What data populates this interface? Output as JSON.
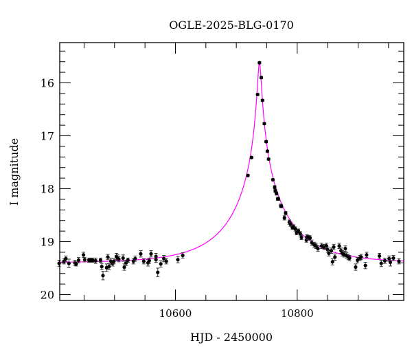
{
  "chart_data": {
    "type": "scatter",
    "title": "OGLE-2025-BLG-0170",
    "xlabel": "HJD - 2450000",
    "ylabel": "I magnitude",
    "xlim": [
      10410,
      10975
    ],
    "ylim": [
      20.11,
      15.24
    ],
    "y_inverted": true,
    "x_ticks": [
      10600,
      10800
    ],
    "y_ticks": [
      16,
      17,
      18,
      19,
      20
    ],
    "grid": false,
    "colors": {
      "points": "#000000",
      "model": "#ff00ff",
      "frame": "#000000"
    },
    "model": {
      "type": "point-lens fit",
      "t0": 10738,
      "tE": 97,
      "u0": 0.031,
      "baseline_mag": 19.4
    },
    "points": [
      [
        10409,
        19.41,
        0.06
      ],
      [
        10417,
        19.37,
        0.05
      ],
      [
        10420,
        19.32,
        0.05
      ],
      [
        10425,
        19.41,
        0.08
      ],
      [
        10435,
        19.4,
        0.05
      ],
      [
        10437,
        19.42,
        0.04
      ],
      [
        10441,
        19.35,
        0.05
      ],
      [
        10449,
        19.25,
        0.05
      ],
      [
        10451,
        19.34,
        0.04
      ],
      [
        10458,
        19.35,
        0.04
      ],
      [
        10461,
        19.35,
        0.04
      ],
      [
        10464,
        19.35,
        0.04
      ],
      [
        10469,
        19.36,
        0.05
      ],
      [
        10477,
        19.35,
        0.04
      ],
      [
        10479,
        19.47,
        0.06
      ],
      [
        10481,
        19.64,
        0.08
      ],
      [
        10487,
        19.49,
        0.07
      ],
      [
        10489,
        19.29,
        0.05
      ],
      [
        10491,
        19.47,
        0.06
      ],
      [
        10494,
        19.37,
        0.06
      ],
      [
        10497,
        19.41,
        0.05
      ],
      [
        10499,
        19.37,
        0.05
      ],
      [
        10503,
        19.28,
        0.06
      ],
      [
        10505,
        19.3,
        0.05
      ],
      [
        10507,
        19.33,
        0.05
      ],
      [
        10514,
        19.31,
        0.06
      ],
      [
        10516,
        19.48,
        0.06
      ],
      [
        10519,
        19.4,
        0.05
      ],
      [
        10522,
        19.35,
        0.04
      ],
      [
        10531,
        19.37,
        0.05
      ],
      [
        10534,
        19.32,
        0.05
      ],
      [
        10543,
        19.23,
        0.06
      ],
      [
        10548,
        19.37,
        0.05
      ],
      [
        10555,
        19.4,
        0.06
      ],
      [
        10557,
        19.36,
        0.05
      ],
      [
        10560,
        19.23,
        0.06
      ],
      [
        10568,
        19.28,
        0.06
      ],
      [
        10568,
        19.34,
        0.05
      ],
      [
        10571,
        19.58,
        0.08
      ],
      [
        10576,
        19.42,
        0.06
      ],
      [
        10581,
        19.32,
        0.06
      ],
      [
        10585,
        19.37,
        0.05
      ],
      [
        10604,
        19.34,
        0.06
      ],
      [
        10612,
        19.26,
        0.05
      ],
      [
        10719,
        17.75,
        0.02
      ],
      [
        10725,
        17.41,
        0.02
      ],
      [
        10735,
        16.22,
        0.02
      ],
      [
        10738,
        15.62,
        0.02
      ],
      [
        10741,
        15.9,
        0.02
      ],
      [
        10743,
        16.33,
        0.02
      ],
      [
        10746,
        16.77,
        0.02
      ],
      [
        10749,
        17.11,
        0.02
      ],
      [
        10751,
        17.29,
        0.02
      ],
      [
        10753,
        17.44,
        0.02
      ],
      [
        10760,
        17.83,
        0.02
      ],
      [
        10763,
        17.97,
        0.03
      ],
      [
        10764,
        18.04,
        0.03
      ],
      [
        10766,
        18.09,
        0.03
      ],
      [
        10768,
        18.19,
        0.03
      ],
      [
        10769,
        18.19,
        0.03
      ],
      [
        10773,
        18.32,
        0.03
      ],
      [
        10774,
        18.33,
        0.03
      ],
      [
        10779,
        18.55,
        0.04
      ],
      [
        10781,
        18.46,
        0.03
      ],
      [
        10787,
        18.63,
        0.04
      ],
      [
        10789,
        18.67,
        0.04
      ],
      [
        10792,
        18.73,
        0.04
      ],
      [
        10794,
        18.72,
        0.04
      ],
      [
        10797,
        18.76,
        0.04
      ],
      [
        10799,
        18.83,
        0.04
      ],
      [
        10802,
        18.8,
        0.04
      ],
      [
        10805,
        18.85,
        0.04
      ],
      [
        10807,
        18.92,
        0.04
      ],
      [
        10815,
        18.97,
        0.04
      ],
      [
        10816,
        18.91,
        0.04
      ],
      [
        10819,
        18.92,
        0.04
      ],
      [
        10821,
        18.93,
        0.04
      ],
      [
        10824,
        19.02,
        0.05
      ],
      [
        10828,
        19.06,
        0.05
      ],
      [
        10831,
        19.08,
        0.05
      ],
      [
        10834,
        19.13,
        0.05
      ],
      [
        10840,
        19.08,
        0.05
      ],
      [
        10844,
        19.1,
        0.05
      ],
      [
        10848,
        19.08,
        0.05
      ],
      [
        10850,
        19.15,
        0.05
      ],
      [
        10852,
        19.22,
        0.05
      ],
      [
        10856,
        19.17,
        0.05
      ],
      [
        10858,
        19.38,
        0.06
      ],
      [
        10860,
        19.1,
        0.05
      ],
      [
        10862,
        19.29,
        0.06
      ],
      [
        10869,
        19.08,
        0.05
      ],
      [
        10872,
        19.17,
        0.05
      ],
      [
        10874,
        19.22,
        0.05
      ],
      [
        10877,
        19.24,
        0.05
      ],
      [
        10879,
        19.13,
        0.05
      ],
      [
        10881,
        19.26,
        0.05
      ],
      [
        10884,
        19.29,
        0.05
      ],
      [
        10886,
        19.31,
        0.05
      ],
      [
        10896,
        19.48,
        0.06
      ],
      [
        10899,
        19.35,
        0.05
      ],
      [
        10903,
        19.31,
        0.05
      ],
      [
        10905,
        19.29,
        0.05
      ],
      [
        10912,
        19.45,
        0.06
      ],
      [
        10914,
        19.25,
        0.05
      ],
      [
        10935,
        19.27,
        0.05
      ],
      [
        10938,
        19.41,
        0.06
      ],
      [
        10944,
        19.36,
        0.05
      ],
      [
        10951,
        19.32,
        0.05
      ],
      [
        10953,
        19.39,
        0.07
      ],
      [
        10958,
        19.31,
        0.05
      ],
      [
        10967,
        19.37,
        0.05
      ]
    ]
  }
}
